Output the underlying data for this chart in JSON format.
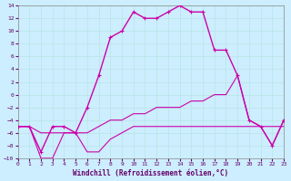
{
  "title": "",
  "xlabel": "Windchill (Refroidissement éolien,°C)",
  "xlim": [
    0,
    23
  ],
  "ylim": [
    -10,
    14
  ],
  "background_color": "#cceeff",
  "grid_color": "#aadddd",
  "yticks": [
    -10,
    -8,
    -6,
    -4,
    -2,
    0,
    2,
    4,
    6,
    8,
    10,
    12,
    14
  ],
  "xticks": [
    0,
    1,
    2,
    3,
    4,
    5,
    6,
    7,
    8,
    9,
    10,
    11,
    12,
    13,
    14,
    15,
    16,
    17,
    18,
    19,
    20,
    21,
    22,
    23
  ],
  "series": [
    {
      "x": [
        0,
        1,
        2,
        3,
        4,
        5,
        6,
        7,
        8,
        9,
        10,
        11,
        12,
        13,
        14,
        15,
        16,
        17,
        18,
        19,
        20,
        21,
        22,
        23
      ],
      "y": [
        -5,
        -5,
        -9,
        -5,
        -5,
        -6,
        -2,
        3,
        9,
        10,
        13,
        12,
        12,
        13,
        14,
        13,
        13,
        7,
        7,
        3,
        -4,
        -5,
        -8,
        -4
      ],
      "marker": true,
      "color": "#cc00aa",
      "lw": 1.0
    },
    {
      "x": [
        0,
        1,
        2,
        3,
        4,
        5,
        6,
        7,
        8,
        9,
        10,
        11,
        12,
        13,
        14,
        15,
        16,
        17,
        18,
        19,
        20,
        21,
        22,
        23
      ],
      "y": [
        -5,
        -5,
        -10,
        -10,
        -6,
        -6,
        -9,
        -9,
        -7,
        -6,
        -5,
        -5,
        -5,
        -5,
        -5,
        -5,
        -5,
        -5,
        -5,
        -5,
        -5,
        -5,
        -5,
        -5
      ],
      "marker": false,
      "color": "#cc00aa",
      "lw": 0.8
    },
    {
      "x": [
        0,
        1,
        2,
        3,
        4,
        5,
        6,
        7,
        8,
        9,
        10,
        11,
        12,
        13,
        14,
        15,
        16,
        17,
        18,
        19,
        20,
        21,
        22,
        23
      ],
      "y": [
        -5,
        -5,
        -6,
        -6,
        -6,
        -6,
        -6,
        -5,
        -4,
        -4,
        -3,
        -3,
        -2,
        -2,
        -2,
        -1,
        -1,
        0,
        0,
        3,
        -4,
        -5,
        -8,
        -4
      ],
      "marker": false,
      "color": "#cc00aa",
      "lw": 0.8
    }
  ]
}
